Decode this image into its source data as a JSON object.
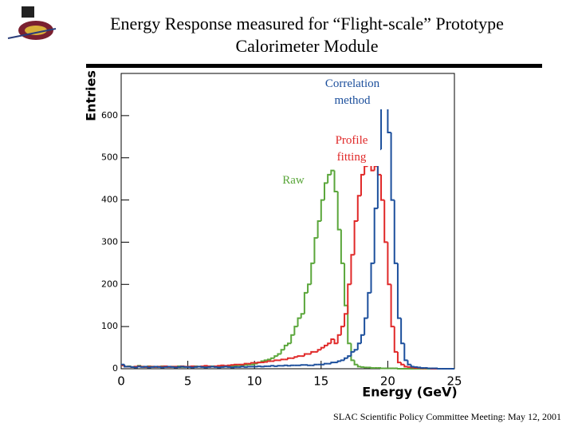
{
  "chart_data": {
    "type": "histogram",
    "title": "Energy Response measured for “Flight-scale” Prototype Calorimeter Module",
    "xlabel": "Energy (GeV)",
    "ylabel": "Entries",
    "xlim": [
      0,
      25
    ],
    "ylim": [
      0,
      700
    ],
    "xticks": [
      0,
      5,
      10,
      15,
      20,
      25
    ],
    "yticks": [
      0,
      100,
      200,
      300,
      400,
      500,
      600
    ],
    "bins": [
      0,
      0.25,
      0.5,
      0.75,
      1,
      1.25,
      1.5,
      1.75,
      2,
      2.25,
      2.5,
      2.75,
      3,
      3.25,
      3.5,
      3.75,
      4,
      4.25,
      4.5,
      4.75,
      5,
      5.25,
      5.5,
      5.75,
      6,
      6.25,
      6.5,
      6.75,
      7,
      7.25,
      7.5,
      7.75,
      8,
      8.25,
      8.5,
      8.75,
      9,
      9.25,
      9.5,
      9.75,
      10,
      10.25,
      10.5,
      10.75,
      11,
      11.25,
      11.5,
      11.75,
      12,
      12.25,
      12.5,
      12.75,
      13,
      13.25,
      13.5,
      13.75,
      14,
      14.25,
      14.5,
      14.75,
      15,
      15.25,
      15.5,
      15.75,
      16,
      16.25,
      16.5,
      16.75,
      17,
      17.25,
      17.5,
      17.75,
      18,
      18.25,
      18.5,
      18.75,
      19,
      19.25,
      19.5,
      19.75,
      20,
      20.25,
      20.5,
      20.75,
      21,
      21.25,
      21.5,
      21.75,
      22,
      22.25,
      22.5,
      22.75,
      23,
      23.25,
      23.5,
      23.75,
      24,
      24.25,
      24.5,
      24.75,
      25
    ],
    "series": [
      {
        "name": "Raw",
        "color": "#5aa63a",
        "values": [
          8,
          5,
          6,
          4,
          5,
          7,
          5,
          4,
          6,
          5,
          4,
          5,
          6,
          5,
          4,
          5,
          5,
          6,
          4,
          5,
          5,
          4,
          6,
          5,
          5,
          4,
          5,
          6,
          5,
          4,
          6,
          5,
          5,
          6,
          7,
          8,
          8,
          9,
          10,
          10,
          12,
          15,
          18,
          20,
          22,
          25,
          30,
          35,
          45,
          55,
          60,
          80,
          100,
          120,
          130,
          180,
          200,
          250,
          310,
          350,
          400,
          440,
          460,
          470,
          420,
          330,
          250,
          150,
          60,
          20,
          10,
          5,
          4,
          3,
          3,
          2,
          2,
          2,
          1,
          1,
          1,
          1,
          1,
          0,
          0,
          0,
          0,
          0,
          0,
          0,
          0,
          0,
          0,
          0,
          0,
          0,
          0,
          0,
          0,
          0
        ]
      },
      {
        "name": "Profile fitting",
        "color": "#e02828",
        "values": [
          8,
          5,
          5,
          4,
          5,
          6,
          5,
          4,
          5,
          5,
          4,
          5,
          5,
          6,
          4,
          5,
          5,
          4,
          6,
          5,
          5,
          6,
          5,
          5,
          6,
          7,
          6,
          5,
          6,
          7,
          8,
          7,
          8,
          9,
          10,
          10,
          10,
          12,
          12,
          14,
          14,
          15,
          15,
          16,
          18,
          18,
          20,
          20,
          22,
          22,
          25,
          25,
          28,
          30,
          30,
          35,
          35,
          40,
          40,
          45,
          50,
          55,
          60,
          70,
          60,
          80,
          100,
          130,
          200,
          270,
          350,
          410,
          460,
          480,
          490,
          470,
          480,
          460,
          400,
          300,
          200,
          100,
          40,
          15,
          10,
          5,
          4,
          3,
          2,
          2,
          1,
          1,
          1,
          0,
          0,
          0,
          0,
          0,
          0,
          0
        ]
      },
      {
        "name": "Correlation method",
        "color": "#1c4f9c",
        "values": [
          10,
          5,
          5,
          4,
          3,
          5,
          4,
          5,
          3,
          4,
          5,
          4,
          3,
          4,
          5,
          4,
          3,
          4,
          5,
          4,
          4,
          3,
          4,
          5,
          4,
          3,
          4,
          5,
          4,
          3,
          4,
          5,
          4,
          3,
          4,
          4,
          5,
          4,
          5,
          5,
          5,
          6,
          5,
          6,
          6,
          7,
          6,
          7,
          7,
          8,
          7,
          8,
          8,
          8,
          9,
          9,
          8,
          8,
          10,
          10,
          10,
          12,
          12,
          15,
          15,
          18,
          20,
          25,
          30,
          40,
          45,
          60,
          80,
          120,
          180,
          250,
          380,
          520,
          620,
          660,
          560,
          400,
          250,
          120,
          60,
          20,
          10,
          5,
          4,
          3,
          2,
          2,
          1,
          1,
          1,
          0,
          0,
          0,
          0,
          0
        ]
      }
    ]
  },
  "footer": "SLAC Scientific Policy Committee Meeting: May 12, 2001"
}
